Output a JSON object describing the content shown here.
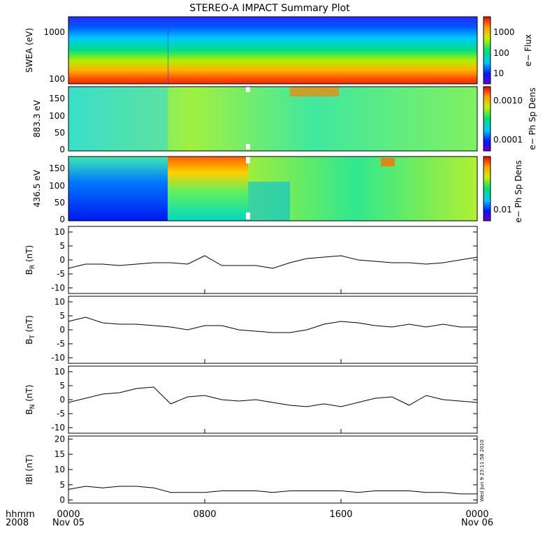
{
  "title": "STEREO-A IMPACT Summary Plot",
  "stamp": "Wed Jun  9 23:11:58 2010",
  "footer": {
    "left_top": "hhmm",
    "left_bottom": "2008",
    "x_tick_labels": [
      "0000",
      "0800",
      "1600",
      "0000"
    ],
    "x_date_labels": [
      "Nov 05",
      "",
      "",
      "Nov 06"
    ]
  },
  "chart_data": [
    {
      "type": "heatmap",
      "ylabel": "SWEA (eV)",
      "yscale": "log",
      "ylim": [
        95,
        2000
      ],
      "yticks": [
        "1000",
        "100"
      ],
      "colorbar_label": "e− Flux",
      "colorbar_ticks": [
        "1000",
        "100",
        "10"
      ],
      "description": "energy spectrogram: high flux (red) at low energies, blue at high energies; change at ~0550"
    },
    {
      "type": "heatmap",
      "ylabel": "883.3 eV",
      "ylim": [
        0,
        180
      ],
      "yticks": [
        "150",
        "100",
        "50",
        "0"
      ],
      "colorbar_label": "e− Ph Sp Dens",
      "colorbar_ticks": [
        "0.0010",
        "0.0001"
      ]
    },
    {
      "type": "heatmap",
      "ylabel": "436.5 eV",
      "ylim": [
        0,
        180
      ],
      "yticks": [
        "150",
        "100",
        "50",
        "0"
      ],
      "colorbar_label": "e− Ph Sp Dens",
      "colorbar_ticks": [
        "0.01"
      ]
    },
    {
      "type": "line",
      "ylabel": "B",
      "ylabel_sub": "R",
      "ylabel_unit": "(nT)",
      "ylim": [
        -12,
        12
      ],
      "yticks": [
        "10",
        "5",
        "0",
        "-5",
        "-10"
      ],
      "x_hours": [
        0,
        1,
        2,
        3,
        4,
        5,
        6,
        7,
        8,
        9,
        10,
        11,
        12,
        13,
        14,
        15,
        16,
        17,
        18,
        19,
        20,
        21,
        22,
        23,
        24
      ],
      "values": [
        -3,
        -1.5,
        -1.5,
        -2,
        -1.5,
        -1,
        -1,
        -1.5,
        1.5,
        -2,
        -2,
        -2,
        -3,
        -1,
        0.5,
        1,
        1.5,
        0,
        -0.5,
        -1,
        -1,
        -1.5,
        -1,
        0,
        1
      ]
    },
    {
      "type": "line",
      "ylabel": "B",
      "ylabel_sub": "T",
      "ylabel_unit": "(nT)",
      "ylim": [
        -12,
        12
      ],
      "yticks": [
        "10",
        "5",
        "0",
        "-5",
        "-10"
      ],
      "x_hours": [
        0,
        1,
        2,
        3,
        4,
        5,
        6,
        7,
        8,
        9,
        10,
        11,
        12,
        13,
        14,
        15,
        16,
        17,
        18,
        19,
        20,
        21,
        22,
        23,
        24
      ],
      "values": [
        3,
        4.5,
        2.5,
        2,
        2,
        1.5,
        1,
        0,
        1.5,
        1.5,
        0,
        -0.5,
        -1,
        -1,
        0,
        2,
        3,
        2.5,
        1.5,
        1,
        2,
        1,
        2,
        1,
        1
      ]
    },
    {
      "type": "line",
      "ylabel": "B",
      "ylabel_sub": "N",
      "ylabel_unit": "(nT)",
      "ylim": [
        -12,
        12
      ],
      "yticks": [
        "10",
        "5",
        "0",
        "-5",
        "-10"
      ],
      "x_hours": [
        0,
        1,
        2,
        3,
        4,
        5,
        6,
        7,
        8,
        9,
        10,
        11,
        12,
        13,
        14,
        15,
        16,
        17,
        18,
        19,
        20,
        21,
        22,
        23,
        24
      ],
      "values": [
        -1,
        0.5,
        2,
        2.5,
        4,
        4.5,
        -1.5,
        1,
        1.5,
        0,
        -0.5,
        0,
        -1,
        -2,
        -2.5,
        -1.5,
        -2.5,
        -1,
        0.5,
        1,
        -2,
        1.5,
        0,
        -0.5,
        -1
      ]
    },
    {
      "type": "line",
      "ylabel": "IBI",
      "ylabel_unit": "(nT)",
      "ylim": [
        -1,
        21
      ],
      "yticks": [
        "20",
        "15",
        "10",
        "5",
        "0"
      ],
      "x_hours": [
        0,
        1,
        2,
        3,
        4,
        5,
        6,
        7,
        8,
        9,
        10,
        11,
        12,
        13,
        14,
        15,
        16,
        17,
        18,
        19,
        20,
        21,
        22,
        23,
        24
      ],
      "values": [
        3.5,
        4.5,
        4,
        4.5,
        4.5,
        4,
        2.5,
        2.5,
        2.5,
        3,
        3,
        3,
        2.5,
        3,
        3,
        3,
        3,
        2.5,
        3,
        3,
        3,
        2.5,
        2.5,
        2,
        2
      ]
    }
  ]
}
